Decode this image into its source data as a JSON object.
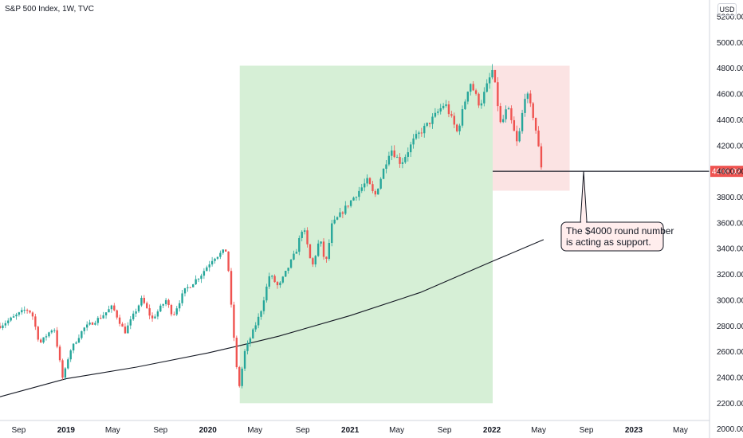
{
  "header": {
    "title": "S&P 500 Index, 1W, TVC",
    "currency": "USD"
  },
  "colors": {
    "up": "#26a69a",
    "down": "#ef5350",
    "green_zone": "#d6efd6",
    "red_zone": "#fbe3e3",
    "ma_line": "#131722",
    "price_tag": "#ef5350"
  },
  "chart_data": {
    "type": "candlestick",
    "title": "S&P 500 Index, 1W, TVC",
    "currency": "USD",
    "y_axis": {
      "ylim": [
        1930,
        5330
      ],
      "ticks": [
        "2000.00",
        "2200.00",
        "2400.00",
        "2600.00",
        "2800.00",
        "3000.00",
        "3200.00",
        "3400.00",
        "3600.00",
        "3800.00",
        "4000.00",
        "4200.00",
        "4400.00",
        "4600.00",
        "4800.00",
        "5000.00",
        "5200.00"
      ]
    },
    "x_axis": {
      "range": [
        "2018-07-15",
        "2023-07-15"
      ],
      "ticks": [
        {
          "label": "Sep",
          "date": "2018-09-01",
          "bold": false
        },
        {
          "label": "2019",
          "date": "2019-01-01",
          "bold": true
        },
        {
          "label": "May",
          "date": "2019-05-01",
          "bold": false
        },
        {
          "label": "Sep",
          "date": "2019-09-01",
          "bold": false
        },
        {
          "label": "2020",
          "date": "2020-01-01",
          "bold": true
        },
        {
          "label": "May",
          "date": "2020-05-01",
          "bold": false
        },
        {
          "label": "Sep",
          "date": "2020-09-01",
          "bold": false
        },
        {
          "label": "2021",
          "date": "2021-01-01",
          "bold": true
        },
        {
          "label": "May",
          "date": "2021-05-01",
          "bold": false
        },
        {
          "label": "Sep",
          "date": "2021-09-01",
          "bold": false
        },
        {
          "label": "2022",
          "date": "2022-01-01",
          "bold": true
        },
        {
          "label": "May",
          "date": "2022-05-01",
          "bold": false
        },
        {
          "label": "Sep",
          "date": "2022-09-01",
          "bold": false
        },
        {
          "label": "2023",
          "date": "2023-01-01",
          "bold": true
        },
        {
          "label": "May",
          "date": "2023-05-01",
          "bold": false
        }
      ]
    },
    "price_path": [
      [
        "2018-07-15",
        2800
      ],
      [
        "2018-08-10",
        2850
      ],
      [
        "2018-09-20",
        2930
      ],
      [
        "2018-10-05",
        2900
      ],
      [
        "2018-10-25",
        2660
      ],
      [
        "2018-11-15",
        2740
      ],
      [
        "2018-12-01",
        2790
      ],
      [
        "2018-12-24",
        2380
      ],
      [
        "2019-01-10",
        2600
      ],
      [
        "2019-02-15",
        2780
      ],
      [
        "2019-04-01",
        2870
      ],
      [
        "2019-04-30",
        2950
      ],
      [
        "2019-06-01",
        2750
      ],
      [
        "2019-07-15",
        3010
      ],
      [
        "2019-08-10",
        2850
      ],
      [
        "2019-09-15",
        3000
      ],
      [
        "2019-10-03",
        2880
      ],
      [
        "2019-11-01",
        3070
      ],
      [
        "2019-12-15",
        3200
      ],
      [
        "2020-01-15",
        3330
      ],
      [
        "2020-02-19",
        3390
      ],
      [
        "2020-03-01",
        2950
      ],
      [
        "2020-03-20",
        2300
      ],
      [
        "2020-04-05",
        2600
      ],
      [
        "2020-05-15",
        2900
      ],
      [
        "2020-06-08",
        3200
      ],
      [
        "2020-07-01",
        3100
      ],
      [
        "2020-08-15",
        3380
      ],
      [
        "2020-09-02",
        3580
      ],
      [
        "2020-09-25",
        3250
      ],
      [
        "2020-10-15",
        3480
      ],
      [
        "2020-10-30",
        3270
      ],
      [
        "2020-11-15",
        3580
      ],
      [
        "2020-12-31",
        3760
      ],
      [
        "2021-02-15",
        3930
      ],
      [
        "2021-03-05",
        3800
      ],
      [
        "2021-04-15",
        4180
      ],
      [
        "2021-05-12",
        4060
      ],
      [
        "2021-06-15",
        4250
      ],
      [
        "2021-07-30",
        4400
      ],
      [
        "2021-09-02",
        4530
      ],
      [
        "2021-10-04",
        4300
      ],
      [
        "2021-11-05",
        4700
      ],
      [
        "2021-12-01",
        4510
      ],
      [
        "2022-01-03",
        4790
      ],
      [
        "2022-01-24",
        4350
      ],
      [
        "2022-02-10",
        4500
      ],
      [
        "2022-03-08",
        4200
      ],
      [
        "2022-03-29",
        4630
      ],
      [
        "2022-04-20",
        4400
      ],
      [
        "2022-05-10",
        4000
      ],
      [
        "2022-05-14",
        4008
      ]
    ],
    "moving_average": [
      [
        "2018-07-15",
        2250
      ],
      [
        "2019-01-01",
        2390
      ],
      [
        "2019-07-01",
        2480
      ],
      [
        "2020-01-01",
        2590
      ],
      [
        "2020-03-20",
        2645
      ],
      [
        "2020-07-01",
        2720
      ],
      [
        "2021-01-01",
        2880
      ],
      [
        "2021-07-01",
        3060
      ],
      [
        "2022-01-01",
        3300
      ],
      [
        "2022-05-14",
        3470
      ]
    ],
    "zones": [
      {
        "name": "rally",
        "from": "2020-03-23",
        "to": "2022-01-03",
        "low": 2200,
        "high": 4820
      },
      {
        "name": "pullback",
        "from": "2022-01-03",
        "to": "2022-07-20",
        "low": 3850,
        "high": 4820
      }
    ],
    "support": {
      "level": 4000,
      "from": "2022-01-03",
      "price_label": "4008.02"
    },
    "annotation": {
      "lines": [
        "The $4000 round number",
        "is acting as support."
      ],
      "anchor_date": "2022-08-25",
      "anchor_price": 4000
    }
  }
}
